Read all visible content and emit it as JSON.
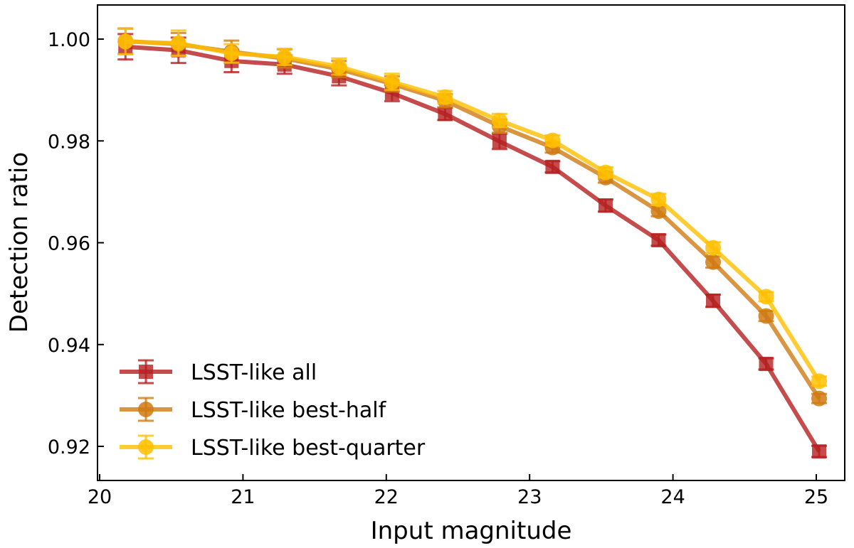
{
  "chart_data": {
    "type": "line",
    "title": "",
    "xlabel": "Input magnitude",
    "ylabel": "Detection ratio",
    "xlim": [
      19.98,
      25.2
    ],
    "ylim": [
      0.9133,
      1.0067
    ],
    "xticks": [
      20,
      21,
      22,
      23,
      24,
      25
    ],
    "xtick_labels": [
      "20",
      "21",
      "22",
      "23",
      "24",
      "25"
    ],
    "yticks": [
      0.92,
      0.94,
      0.96,
      0.98,
      1.0
    ],
    "ytick_labels": [
      "0.92",
      "0.94",
      "0.96",
      "0.98",
      "1.00"
    ],
    "grid": false,
    "legend_position": "lower-left",
    "x": [
      20.18,
      20.55,
      20.92,
      21.29,
      21.67,
      22.04,
      22.41,
      22.79,
      23.16,
      23.53,
      23.9,
      24.28,
      24.65,
      25.02
    ],
    "series": [
      {
        "name": "LSST-like all",
        "marker": "square",
        "color": "#b51f1f",
        "values": [
          0.9985,
          0.9978,
          0.9957,
          0.995,
          0.9927,
          0.9894,
          0.9853,
          0.9799,
          0.9749,
          0.9673,
          0.9605,
          0.9486,
          0.9362,
          0.919
        ],
        "errors": [
          0.0025,
          0.0025,
          0.0022,
          0.0018,
          0.0018,
          0.0016,
          0.0012,
          0.0015,
          0.0011,
          0.0012,
          0.0011,
          0.0012,
          0.0011,
          0.0011
        ]
      },
      {
        "name": "LSST-like best-half",
        "marker": "circle",
        "color": "#d07a12",
        "values": [
          0.9996,
          0.999,
          0.9975,
          0.9962,
          0.9941,
          0.9912,
          0.9879,
          0.9829,
          0.9787,
          0.9728,
          0.9662,
          0.9562,
          0.9456,
          0.9294
        ],
        "errors": [
          0.0025,
          0.0022,
          0.0022,
          0.0018,
          0.0016,
          0.0015,
          0.0013,
          0.0013,
          0.001,
          0.001,
          0.001,
          0.0011,
          0.001,
          0.0009
        ]
      },
      {
        "name": "LSST-like best-quarter",
        "marker": "circle",
        "color": "#ffbf00",
        "values": [
          0.9995,
          0.9992,
          0.9972,
          0.9965,
          0.9946,
          0.9916,
          0.9886,
          0.984,
          0.9801,
          0.9738,
          0.9685,
          0.959,
          0.9494,
          0.9328
        ],
        "errors": [
          0.0025,
          0.0025,
          0.0018,
          0.0016,
          0.0016,
          0.0016,
          0.0012,
          0.0013,
          0.001,
          0.001,
          0.0011,
          0.0011,
          0.0009,
          0.0009
        ]
      }
    ]
  }
}
